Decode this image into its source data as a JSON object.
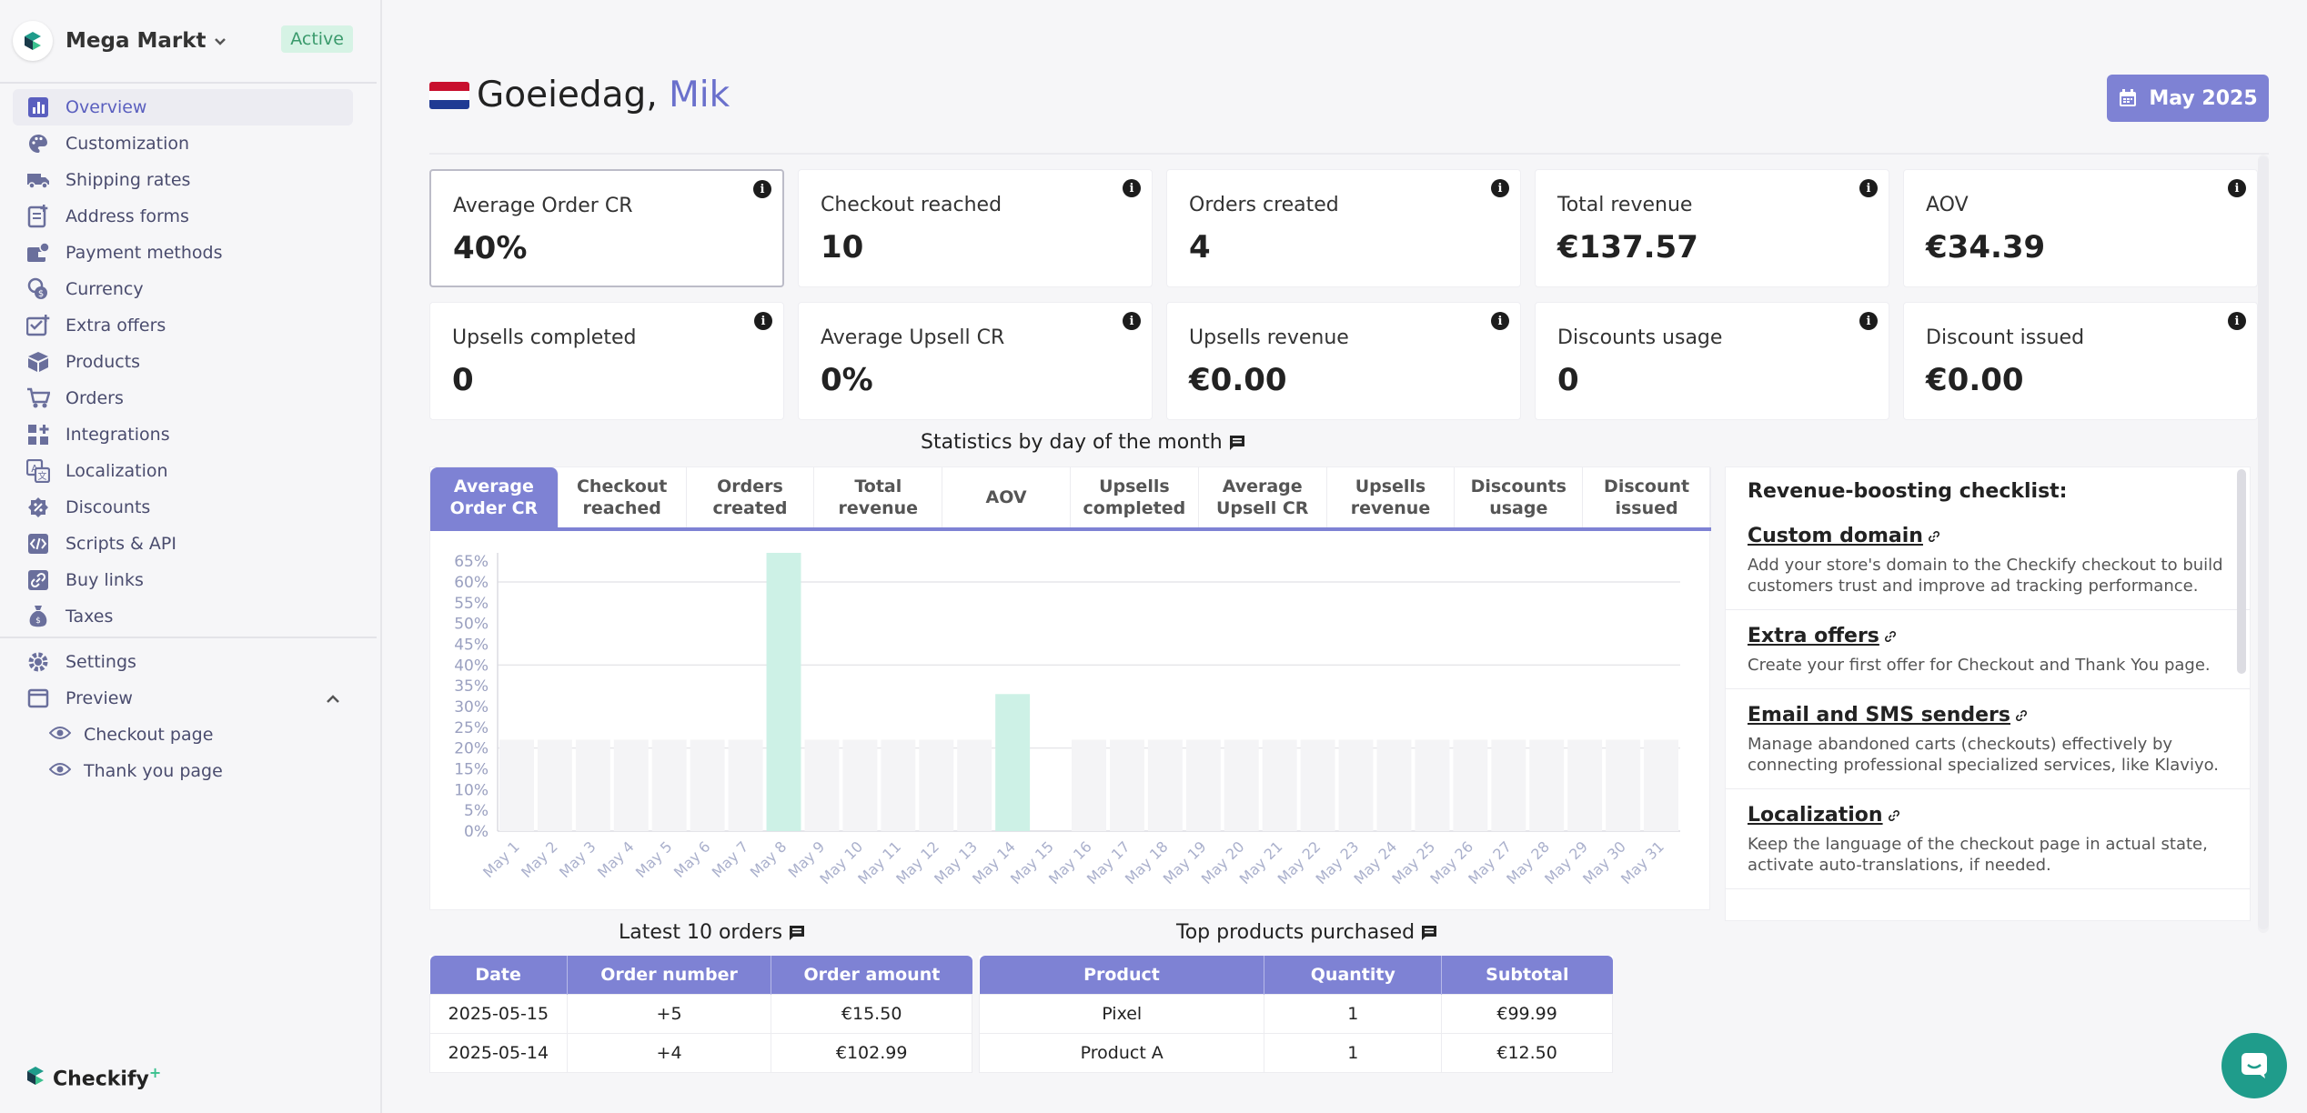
{
  "store": {
    "name": "Mega Markt",
    "status": "Active"
  },
  "nav": {
    "items": [
      {
        "label": "Overview",
        "icon": "bar-chart-icon",
        "active": true
      },
      {
        "label": "Customization",
        "icon": "palette-icon"
      },
      {
        "label": "Shipping rates",
        "icon": "truck-icon"
      },
      {
        "label": "Address forms",
        "icon": "form-icon"
      },
      {
        "label": "Payment methods",
        "icon": "wallet-icon"
      },
      {
        "label": "Currency",
        "icon": "coins-icon"
      },
      {
        "label": "Extra offers",
        "icon": "offer-icon"
      },
      {
        "label": "Products",
        "icon": "box-icon"
      },
      {
        "label": "Orders",
        "icon": "cart-icon"
      },
      {
        "label": "Integrations",
        "icon": "integrations-icon"
      },
      {
        "label": "Localization",
        "icon": "translate-icon"
      },
      {
        "label": "Discounts",
        "icon": "discount-icon"
      },
      {
        "label": "Scripts & API",
        "icon": "code-icon"
      },
      {
        "label": "Buy links",
        "icon": "link-icon"
      },
      {
        "label": "Taxes",
        "icon": "tax-icon"
      }
    ],
    "settings": "Settings",
    "preview": "Preview",
    "preview_items": [
      "Checkout page",
      "Thank you page"
    ]
  },
  "brand": "Checkify",
  "greeting": {
    "hello": "Goeiedag,",
    "name": "Mik"
  },
  "date_button": "May 2025",
  "kpis": [
    {
      "label": "Average Order CR",
      "value": "40%"
    },
    {
      "label": "Checkout reached",
      "value": "10"
    },
    {
      "label": "Orders created",
      "value": "4"
    },
    {
      "label": "Total revenue",
      "value": "€137.57"
    },
    {
      "label": "AOV",
      "value": "€34.39"
    },
    {
      "label": "Upsells completed",
      "value": "0"
    },
    {
      "label": "Average Upsell CR",
      "value": "0%"
    },
    {
      "label": "Upsells revenue",
      "value": "€0.00"
    },
    {
      "label": "Discounts usage",
      "value": "0"
    },
    {
      "label": "Discount issued",
      "value": "€0.00"
    }
  ],
  "stats_title": "Statistics by day of the month",
  "tabs": [
    "Average Order CR",
    "Checkout reached",
    "Orders created",
    "Total revenue",
    "AOV",
    "Upsells completed",
    "Average Upsell CR",
    "Upsells revenue",
    "Discounts usage",
    "Discount issued"
  ],
  "chart_data": {
    "type": "bar",
    "categories": [
      "May 1",
      "May 2",
      "May 3",
      "May 4",
      "May 5",
      "May 6",
      "May 7",
      "May 8",
      "May 9",
      "May 10",
      "May 11",
      "May 12",
      "May 13",
      "May 14",
      "May 15",
      "May 16",
      "May 17",
      "May 18",
      "May 19",
      "May 20",
      "May 21",
      "May 22",
      "May 23",
      "May 24",
      "May 25",
      "May 26",
      "May 27",
      "May 28",
      "May 29",
      "May 30",
      "May 31"
    ],
    "values": [
      0,
      0,
      0,
      0,
      0,
      0,
      0,
      67,
      0,
      0,
      0,
      0,
      0,
      33,
      0,
      0,
      0,
      0,
      0,
      0,
      0,
      0,
      0,
      0,
      0,
      0,
      0,
      0,
      0,
      0,
      0
    ],
    "background_bars": [
      22,
      22,
      22,
      22,
      22,
      22,
      22,
      0,
      22,
      22,
      22,
      22,
      22,
      0,
      0,
      22,
      22,
      22,
      22,
      22,
      22,
      22,
      22,
      22,
      22,
      22,
      22,
      22,
      22,
      22,
      22
    ],
    "yticks": [
      "0%",
      "5%",
      "10%",
      "15%",
      "20%",
      "25%",
      "30%",
      "35%",
      "40%",
      "45%",
      "50%",
      "55%",
      "60%",
      "65%"
    ],
    "ylim": [
      0,
      67
    ],
    "bar_color": "#cdf1e6",
    "background_bar_color": "#f4f4f6"
  },
  "checklist": {
    "title": "Revenue-boosting checklist:",
    "items": [
      {
        "title": "Custom domain",
        "desc": "Add your store's domain to the Checkify checkout to build customers trust and improve ad tracking performance."
      },
      {
        "title": "Extra offers",
        "desc": "Create your first offer for Checkout and Thank You page."
      },
      {
        "title": "Email and SMS senders",
        "desc": "Manage abandoned carts (checkouts) effectively by connecting professional specialized services, like Klaviyo."
      },
      {
        "title": "Localization",
        "desc": "Keep the language of the checkout page in actual state, activate auto-translations, if needed."
      }
    ]
  },
  "orders": {
    "title": "Latest 10 orders",
    "headers": [
      "Date",
      "Order number",
      "Order amount"
    ],
    "rows": [
      [
        "2025-05-15",
        "+5",
        "€15.50"
      ],
      [
        "2025-05-14",
        "+4",
        "€102.99"
      ]
    ]
  },
  "products": {
    "title": "Top products purchased",
    "headers": [
      "Product",
      "Quantity",
      "Subtotal"
    ],
    "rows": [
      [
        "Pixel",
        "1",
        "€99.99"
      ],
      [
        "Product A",
        "1",
        "€12.50"
      ]
    ]
  }
}
